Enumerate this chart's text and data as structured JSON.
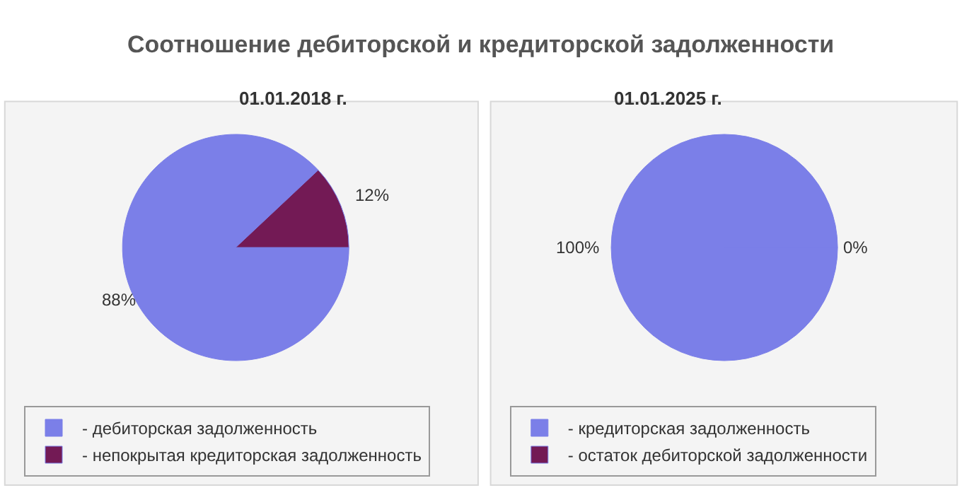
{
  "chart_data": [
    {
      "type": "pie",
      "title": "Соотношение дебиторской и кредиторской задолженности",
      "subtitle": "01.01.2018 г.",
      "categories": [
        "- дебиторская задолженность",
        "- непокрытая кредиторская задолженность"
      ],
      "values": [
        88,
        12
      ],
      "value_labels": [
        "88%",
        "12%"
      ],
      "colors": [
        "#7b7fe8",
        "#731a55"
      ],
      "legend": "bottom"
    },
    {
      "type": "pie",
      "subtitle": "01.01.2025 г.",
      "categories": [
        "- кредиторская задолженность",
        "- остаток дебиторской задолженности"
      ],
      "values": [
        100,
        0
      ],
      "value_labels": [
        "100%",
        "0%"
      ],
      "colors": [
        "#7b7fe8",
        "#731a55"
      ],
      "legend": "bottom"
    }
  ]
}
